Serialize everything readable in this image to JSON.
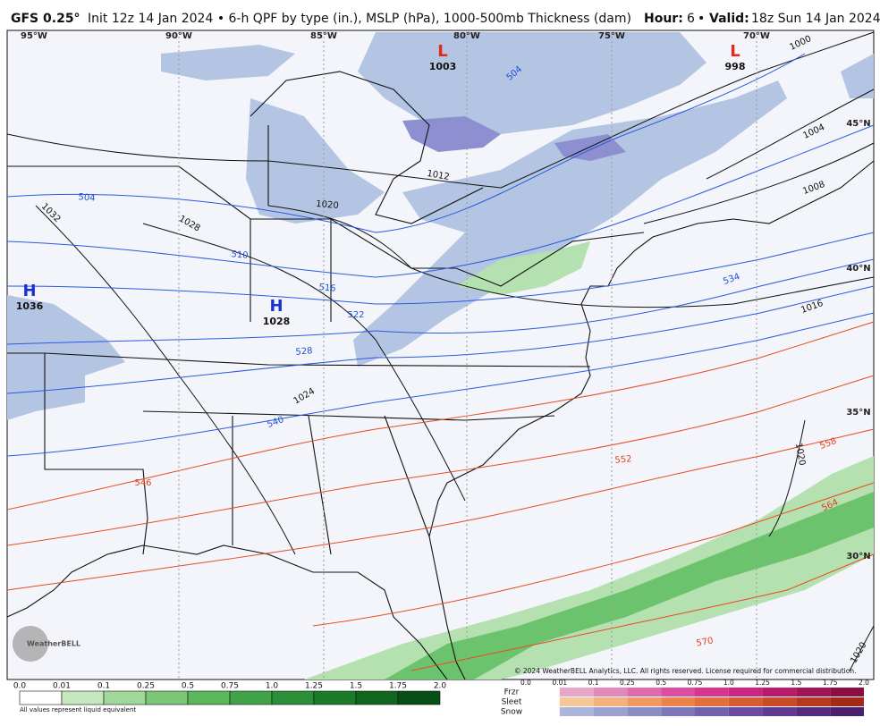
{
  "header": {
    "model": "GFS 0.25°",
    "description": "Init 12z 14 Jan 2024 • 6-h QPF by type (in.), MSLP (hPa), 1000-500mb Thickness (dam)",
    "hour_label": "Hour:",
    "hour": "6",
    "valid_label": "Valid:",
    "valid": "18z Sun 14 Jan 2024"
  },
  "longitudes": [
    "95°W",
    "90°W",
    "85°W",
    "80°W",
    "75°W",
    "70°W"
  ],
  "latitudes": [
    "45°N",
    "40°N",
    "35°N",
    "30°N"
  ],
  "pressure_centers": [
    {
      "symbol": "L",
      "value": "1003"
    },
    {
      "symbol": "L",
      "value": "998"
    },
    {
      "symbol": "H",
      "value": "1036"
    },
    {
      "symbol": "H",
      "value": "1028"
    }
  ],
  "isobar_labels": [
    "1000",
    "1004",
    "1008",
    "1012",
    "1016",
    "1020",
    "1020",
    "1020",
    "1024",
    "1028",
    "1032"
  ],
  "thickness_labels_cold": [
    "504",
    "504",
    "510",
    "516",
    "522",
    "528",
    "534",
    "540"
  ],
  "thickness_labels_warm": [
    "546",
    "552",
    "558",
    "564",
    "570"
  ],
  "qpf_legend": {
    "ticks": [
      "0.0",
      "0.01",
      "0.1",
      "0.25",
      "0.5",
      "0.75",
      "1.0",
      "1.25",
      "1.5",
      "1.75",
      "2.0"
    ],
    "note": "All values represent liquid equivalent"
  },
  "type_legend": {
    "types": [
      "Frzr",
      "Sleet",
      "Snow"
    ],
    "ticks": [
      "0.0",
      "0.01",
      "0.1",
      "0.25",
      "0.5",
      "0.75",
      "1.0",
      "1.25",
      "1.5",
      "1.75",
      "2.0"
    ]
  },
  "copyright": "© 2024 WeatherBELL Analytics, LLC. All rights reserved. License required for commercial distribution.",
  "logo": "WeatherBELL"
}
